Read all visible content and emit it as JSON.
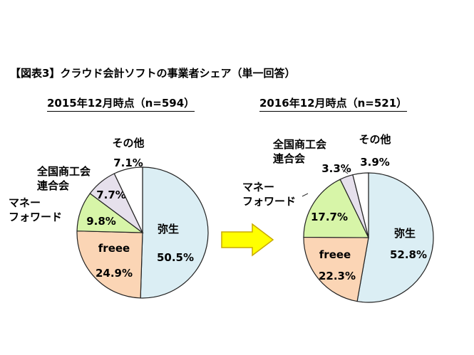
{
  "title": "【図表3】クラウド会計ソフトの事業者シェア（単一回答）",
  "colors": {
    "弥生": "#dbeef4",
    "freee": "#fbd5b5",
    "マネーフォワード": "#d7f5a8",
    "全国商工会連合会": "#e6e0ec",
    "その他": "#ffffff",
    "outline": "#222222",
    "arrow": "#ffff00",
    "arrow_outline": "#c8a800"
  },
  "chart_data": [
    {
      "type": "pie",
      "title": "2015年12月時点（n=594）",
      "slices": [
        {
          "name": "弥生",
          "name_lines": [
            "弥生"
          ],
          "value": 50.5,
          "label": "50.5%"
        },
        {
          "name": "freee",
          "name_lines": [
            "freee"
          ],
          "value": 24.9,
          "label": "24.9%"
        },
        {
          "name": "マネーフォワード",
          "name_lines": [
            "マネー",
            "フォワード"
          ],
          "value": 9.8,
          "label": "9.8%"
        },
        {
          "name": "全国商工会連合会",
          "name_lines": [
            "全国商工会",
            "連合会"
          ],
          "value": 7.7,
          "label": "7.7%"
        },
        {
          "name": "その他",
          "name_lines": [
            "その他"
          ],
          "value": 7.1,
          "label": "7.1%"
        }
      ]
    },
    {
      "type": "pie",
      "title": "2016年12月時点（n=521）",
      "slices": [
        {
          "name": "弥生",
          "name_lines": [
            "弥生"
          ],
          "value": 52.8,
          "label": "52.8%"
        },
        {
          "name": "freee",
          "name_lines": [
            "freee"
          ],
          "value": 22.3,
          "label": "22.3%"
        },
        {
          "name": "マネーフォワード",
          "name_lines": [
            "マネー",
            "フォワード"
          ],
          "value": 17.7,
          "label": "17.7%"
        },
        {
          "name": "全国商工会連合会",
          "name_lines": [
            "全国商工会",
            "連合会"
          ],
          "value": 3.3,
          "label": "3.3%"
        },
        {
          "name": "その他",
          "name_lines": [
            "その他"
          ],
          "value": 3.9,
          "label": "3.9%"
        }
      ]
    }
  ]
}
